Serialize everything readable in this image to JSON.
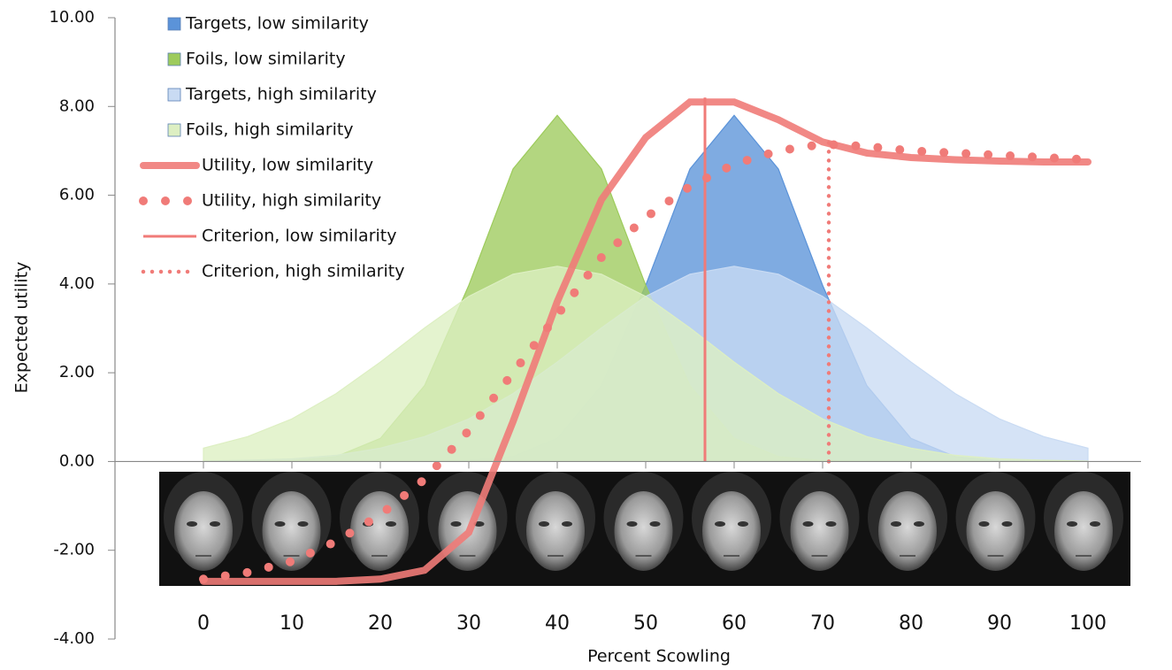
{
  "chart_data": {
    "type": "area",
    "x_label": "Percent Scowling",
    "y_label": "Expected utility",
    "xlim": [
      -10,
      106
    ],
    "ylim": [
      -4,
      10
    ],
    "xticks": [
      0,
      10,
      20,
      30,
      40,
      50,
      60,
      70,
      80,
      90,
      100
    ],
    "yticks": [
      {
        "value": -4,
        "label": "-4.00"
      },
      {
        "value": -2,
        "label": "-2.00"
      },
      {
        "value": 0,
        "label": "0.00"
      },
      {
        "value": 2,
        "label": "2.00"
      },
      {
        "value": 4,
        "label": "4.00"
      },
      {
        "value": 6,
        "label": "6.00"
      },
      {
        "value": 8,
        "label": "8.00"
      },
      {
        "value": 10,
        "label": "10.00"
      }
    ],
    "legend": "upper left",
    "x": [
      0,
      5,
      10,
      15,
      20,
      25,
      30,
      35,
      40,
      45,
      50,
      55,
      60,
      65,
      70,
      75,
      80,
      85,
      90,
      95,
      100
    ],
    "series": [
      {
        "name": "Targets, low similarity",
        "style": "area",
        "color": "#5b93d9",
        "values": [
          0,
          0,
          0,
          0,
          0,
          0,
          0.02,
          0.11,
          0.52,
          1.71,
          3.97,
          6.59,
          7.8,
          6.59,
          3.97,
          1.71,
          0.52,
          0.11,
          0.02,
          0,
          0
        ]
      },
      {
        "name": "Foils, low similarity",
        "style": "area",
        "color": "#9dcb5c",
        "values": [
          0,
          0,
          0.02,
          0.11,
          0.52,
          1.71,
          3.97,
          6.59,
          7.8,
          6.59,
          3.97,
          1.71,
          0.52,
          0.11,
          0.02,
          0,
          0,
          0,
          0,
          0,
          0
        ]
      },
      {
        "name": "Targets, high similarity",
        "style": "area",
        "color": "#c9dbf3",
        "values": [
          0.01,
          0.03,
          0.06,
          0.14,
          0.3,
          0.56,
          0.96,
          1.53,
          2.24,
          3.01,
          3.72,
          4.22,
          4.4,
          4.22,
          3.72,
          3.01,
          2.24,
          1.53,
          0.96,
          0.56,
          0.3
        ]
      },
      {
        "name": "Foils, high similarity",
        "style": "area",
        "color": "#ddefc2",
        "values": [
          0.3,
          0.56,
          0.96,
          1.53,
          2.24,
          3.01,
          3.72,
          4.22,
          4.4,
          4.22,
          3.72,
          3.01,
          2.24,
          1.53,
          0.96,
          0.56,
          0.3,
          0.14,
          0.06,
          0.03,
          0.01
        ]
      },
      {
        "name": "Utility, low similarity",
        "style": "thick",
        "color": "#f07b78",
        "values": [
          -2.7,
          -2.7,
          -2.7,
          -2.7,
          -2.65,
          -2.45,
          -1.6,
          0.9,
          3.6,
          5.9,
          7.3,
          8.1,
          8.1,
          7.7,
          7.2,
          6.95,
          6.85,
          6.8,
          6.77,
          6.75,
          6.75
        ]
      },
      {
        "name": "Utility, high similarity",
        "style": "thick-dotted",
        "color": "#f07b78",
        "values": [
          -2.65,
          -2.5,
          -2.25,
          -1.8,
          -1.2,
          -0.4,
          0.7,
          2.0,
          3.3,
          4.6,
          5.5,
          6.2,
          6.7,
          7.0,
          7.15,
          7.1,
          7.0,
          6.95,
          6.9,
          6.85,
          6.8
        ]
      },
      {
        "name": "Criterion, low similarity",
        "style": "thin",
        "color": "#f07b78",
        "x": [
          56.7,
          56.7
        ],
        "values": [
          0,
          8.2
        ]
      },
      {
        "name": "Criterion, high similarity",
        "style": "thin-dotted",
        "color": "#f07b78",
        "x": [
          70.7,
          70.7
        ],
        "values": [
          0,
          7.2
        ]
      }
    ]
  }
}
